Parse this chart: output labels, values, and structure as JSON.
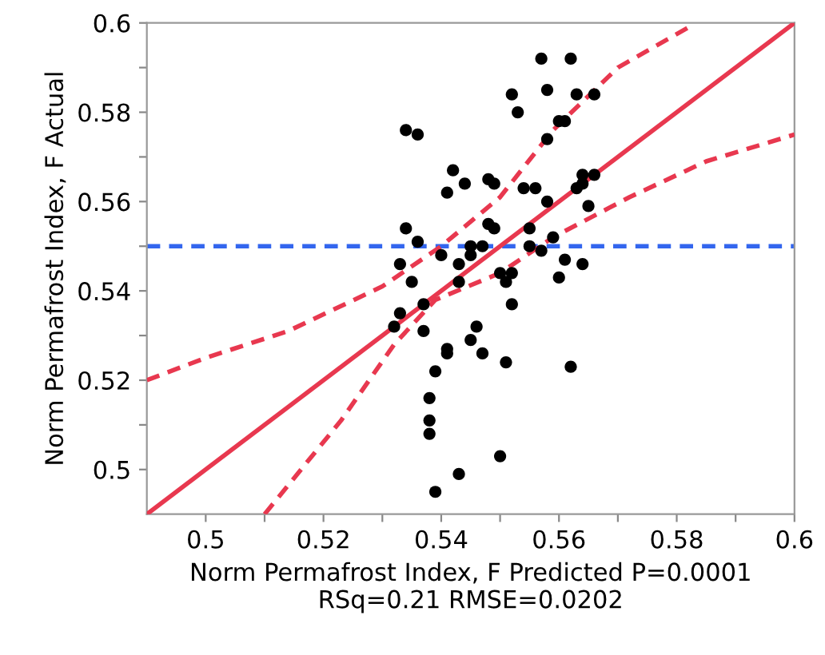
{
  "chart_data": {
    "type": "scatter",
    "xlabel": "Norm Permafrost Index, F Predicted P=0.0001\nRSq=0.21 RMSE=0.0202",
    "ylabel": "Norm Permafrost Index, F Actual",
    "xlim": [
      0.49,
      0.6
    ],
    "ylim": [
      0.49,
      0.6
    ],
    "xticks": [
      0.5,
      {
        "value": 0.51,
        "label": null
      },
      0.52,
      {
        "value": 0.53,
        "label": null
      },
      0.54,
      {
        "value": 0.55,
        "label": null
      },
      0.56,
      {
        "value": 0.57,
        "label": null
      },
      0.58,
      {
        "value": 0.59,
        "label": null
      },
      0.6
    ],
    "yticks": [
      0.5,
      {
        "value": 0.51,
        "label": null
      },
      0.52,
      {
        "value": 0.53,
        "label": null
      },
      0.54,
      {
        "value": 0.55,
        "label": null
      },
      0.56,
      {
        "value": 0.57,
        "label": null
      },
      0.58,
      {
        "value": 0.59,
        "label": null
      },
      0.6
    ],
    "grid": false,
    "legend": false,
    "series": [
      {
        "color": "#000000",
        "marker": "circle",
        "x": [
          0.557,
          0.562,
          0.552,
          0.558,
          0.563,
          0.566,
          0.553,
          0.56,
          0.561,
          0.558,
          0.534,
          0.536,
          0.542,
          0.541,
          0.544,
          0.548,
          0.549,
          0.554,
          0.556,
          0.558,
          0.564,
          0.566,
          0.564,
          0.563,
          0.565,
          0.534,
          0.536,
          0.548,
          0.549,
          0.555,
          0.545,
          0.547,
          0.545,
          0.555,
          0.557,
          0.559,
          0.533,
          0.54,
          0.543,
          0.561,
          0.564,
          0.535,
          0.543,
          0.55,
          0.552,
          0.551,
          0.56,
          0.533,
          0.532,
          0.537,
          0.537,
          0.552,
          0.546,
          0.545,
          0.541,
          0.541,
          0.547,
          0.551,
          0.562,
          0.539,
          0.538,
          0.538,
          0.538,
          0.55,
          0.543,
          0.539
        ],
        "values": [
          0.592,
          0.592,
          0.584,
          0.585,
          0.584,
          0.584,
          0.58,
          0.578,
          0.578,
          0.574,
          0.576,
          0.575,
          0.567,
          0.562,
          0.564,
          0.565,
          0.564,
          0.563,
          0.563,
          0.56,
          0.566,
          0.566,
          0.564,
          0.563,
          0.559,
          0.554,
          0.551,
          0.555,
          0.554,
          0.554,
          0.55,
          0.55,
          0.548,
          0.55,
          0.549,
          0.552,
          0.546,
          0.548,
          0.546,
          0.547,
          0.546,
          0.542,
          0.542,
          0.544,
          0.544,
          0.542,
          0.543,
          0.535,
          0.532,
          0.537,
          0.531,
          0.537,
          0.532,
          0.529,
          0.527,
          0.526,
          0.526,
          0.524,
          0.523,
          0.522,
          0.516,
          0.511,
          0.508,
          0.503,
          0.499,
          0.495
        ]
      },
      {
        "type": "line",
        "color": "#e8384f",
        "line_style": "solid",
        "marker": "none",
        "x": [
          0.49,
          0.6
        ],
        "values": [
          0.49,
          0.6
        ]
      },
      {
        "type": "line",
        "color": "#e8384f",
        "line_style": "dashed",
        "marker": "none",
        "x": [
          0.49,
          0.5,
          0.514,
          0.53,
          0.54,
          0.55,
          0.559,
          0.57,
          0.582
        ],
        "values": [
          0.52,
          0.525,
          0.531,
          0.541,
          0.55,
          0.561,
          0.576,
          0.59,
          0.599
        ]
      },
      {
        "type": "line",
        "color": "#e8384f",
        "line_style": "dashed",
        "marker": "none",
        "x": [
          0.51,
          0.523,
          0.532,
          0.539,
          0.55,
          0.559,
          0.572,
          0.585,
          0.6
        ],
        "values": [
          0.49,
          0.511,
          0.528,
          0.538,
          0.544,
          0.552,
          0.561,
          0.569,
          0.575
        ]
      }
    ],
    "ref_lines": [
      {
        "axis": "y",
        "value": 0.55,
        "color": "#3366ee",
        "line_style": "dashed"
      }
    ]
  }
}
